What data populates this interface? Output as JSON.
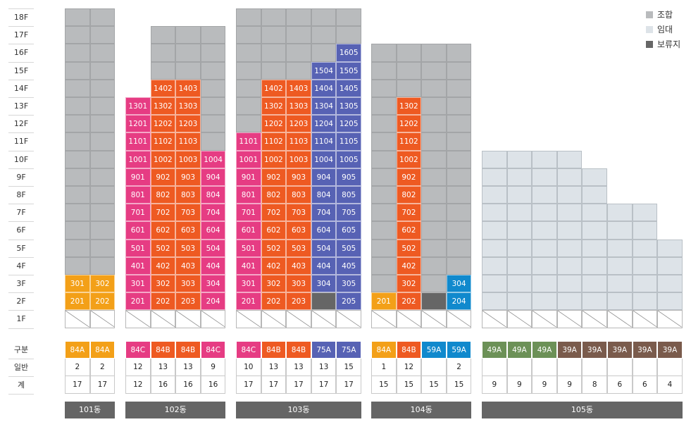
{
  "floors": [
    "18F",
    "17F",
    "16F",
    "15F",
    "14F",
    "13F",
    "12F",
    "11F",
    "10F",
    "9F",
    "8F",
    "7F",
    "6F",
    "5F",
    "4F",
    "3F",
    "2F",
    "1F"
  ],
  "row_labels": {
    "type": "구분",
    "general": "일반",
    "total": "계"
  },
  "legend": [
    {
      "label": "조합",
      "color": "#b9bbbd"
    },
    {
      "label": "임대",
      "color": "#dde3e8"
    },
    {
      "label": "보류지",
      "color": "#666666"
    }
  ],
  "type_colors": {
    "84A": "#f3a018",
    "84B": "#ee5a22",
    "84C": "#e63c83",
    "75A": "#5762b4",
    "59A": "#1089cd",
    "49A": "#6c9157",
    "39A": "#7a5b4c"
  },
  "buildings": [
    {
      "name": "101동",
      "columns": [
        {
          "type": "84A",
          "general": "2",
          "total": "17",
          "top": 18,
          "units": [
            {
              "floor": 3,
              "label": "301"
            },
            {
              "floor": 2,
              "label": "201"
            }
          ]
        },
        {
          "type": "84A",
          "general": "2",
          "total": "17",
          "top": 18,
          "units": [
            {
              "floor": 3,
              "label": "302"
            },
            {
              "floor": 2,
              "label": "202"
            }
          ]
        }
      ]
    },
    {
      "name": "102동",
      "columns": [
        {
          "type": "84C",
          "general": "12",
          "total": "12",
          "top": 13,
          "units": [
            {
              "floor": 13,
              "label": "1301"
            },
            {
              "floor": 12,
              "label": "1201"
            },
            {
              "floor": 11,
              "label": "1101"
            },
            {
              "floor": 10,
              "label": "1001"
            },
            {
              "floor": 9,
              "label": "901"
            },
            {
              "floor": 8,
              "label": "801"
            },
            {
              "floor": 7,
              "label": "701"
            },
            {
              "floor": 6,
              "label": "601"
            },
            {
              "floor": 5,
              "label": "501"
            },
            {
              "floor": 4,
              "label": "401"
            },
            {
              "floor": 3,
              "label": "301"
            },
            {
              "floor": 2,
              "label": "201"
            }
          ]
        },
        {
          "type": "84B",
          "general": "13",
          "total": "16",
          "top": 17,
          "units": [
            {
              "floor": 14,
              "label": "1402"
            },
            {
              "floor": 13,
              "label": "1302"
            },
            {
              "floor": 12,
              "label": "1202"
            },
            {
              "floor": 11,
              "label": "1102"
            },
            {
              "floor": 10,
              "label": "1002"
            },
            {
              "floor": 9,
              "label": "902"
            },
            {
              "floor": 8,
              "label": "802"
            },
            {
              "floor": 7,
              "label": "702"
            },
            {
              "floor": 6,
              "label": "602"
            },
            {
              "floor": 5,
              "label": "502"
            },
            {
              "floor": 4,
              "label": "402"
            },
            {
              "floor": 3,
              "label": "302"
            },
            {
              "floor": 2,
              "label": "202"
            }
          ]
        },
        {
          "type": "84B",
          "general": "13",
          "total": "16",
          "top": 17,
          "units": [
            {
              "floor": 14,
              "label": "1403"
            },
            {
              "floor": 13,
              "label": "1303"
            },
            {
              "floor": 12,
              "label": "1203"
            },
            {
              "floor": 11,
              "label": "1103"
            },
            {
              "floor": 10,
              "label": "1003"
            },
            {
              "floor": 9,
              "label": "903"
            },
            {
              "floor": 8,
              "label": "803"
            },
            {
              "floor": 7,
              "label": "703"
            },
            {
              "floor": 6,
              "label": "603"
            },
            {
              "floor": 5,
              "label": "503"
            },
            {
              "floor": 4,
              "label": "403"
            },
            {
              "floor": 3,
              "label": "303"
            },
            {
              "floor": 2,
              "label": "203"
            }
          ]
        },
        {
          "type": "84C",
          "general": "9",
          "total": "16",
          "top": 17,
          "units": [
            {
              "floor": 10,
              "label": "1004"
            },
            {
              "floor": 9,
              "label": "904"
            },
            {
              "floor": 8,
              "label": "804"
            },
            {
              "floor": 7,
              "label": "704"
            },
            {
              "floor": 6,
              "label": "604"
            },
            {
              "floor": 5,
              "label": "504"
            },
            {
              "floor": 4,
              "label": "404"
            },
            {
              "floor": 3,
              "label": "304"
            },
            {
              "floor": 2,
              "label": "204"
            }
          ]
        }
      ]
    },
    {
      "name": "103동",
      "columns": [
        {
          "type": "84C",
          "general": "10",
          "total": "17",
          "top": 18,
          "units": [
            {
              "floor": 11,
              "label": "1101"
            },
            {
              "floor": 10,
              "label": "1001"
            },
            {
              "floor": 9,
              "label": "901"
            },
            {
              "floor": 8,
              "label": "801"
            },
            {
              "floor": 7,
              "label": "701"
            },
            {
              "floor": 6,
              "label": "601"
            },
            {
              "floor": 5,
              "label": "501"
            },
            {
              "floor": 4,
              "label": "401"
            },
            {
              "floor": 3,
              "label": "301"
            },
            {
              "floor": 2,
              "label": "201"
            }
          ]
        },
        {
          "type": "84B",
          "general": "13",
          "total": "17",
          "top": 18,
          "units": [
            {
              "floor": 14,
              "label": "1402"
            },
            {
              "floor": 13,
              "label": "1302"
            },
            {
              "floor": 12,
              "label": "1202"
            },
            {
              "floor": 11,
              "label": "1102"
            },
            {
              "floor": 10,
              "label": "1002"
            },
            {
              "floor": 9,
              "label": "902"
            },
            {
              "floor": 8,
              "label": "802"
            },
            {
              "floor": 7,
              "label": "702"
            },
            {
              "floor": 6,
              "label": "602"
            },
            {
              "floor": 5,
              "label": "502"
            },
            {
              "floor": 4,
              "label": "402"
            },
            {
              "floor": 3,
              "label": "302"
            },
            {
              "floor": 2,
              "label": "202"
            }
          ]
        },
        {
          "type": "84B",
          "general": "13",
          "total": "17",
          "top": 18,
          "units": [
            {
              "floor": 14,
              "label": "1403"
            },
            {
              "floor": 13,
              "label": "1303"
            },
            {
              "floor": 12,
              "label": "1203"
            },
            {
              "floor": 11,
              "label": "1103"
            },
            {
              "floor": 10,
              "label": "1003"
            },
            {
              "floor": 9,
              "label": "903"
            },
            {
              "floor": 8,
              "label": "803"
            },
            {
              "floor": 7,
              "label": "703"
            },
            {
              "floor": 6,
              "label": "603"
            },
            {
              "floor": 5,
              "label": "503"
            },
            {
              "floor": 4,
              "label": "403"
            },
            {
              "floor": 3,
              "label": "303"
            },
            {
              "floor": 2,
              "label": "203"
            }
          ]
        },
        {
          "type": "75A",
          "general": "13",
          "total": "17",
          "top": 18,
          "reserved": [
            2
          ],
          "units": [
            {
              "floor": 15,
              "label": "1504"
            },
            {
              "floor": 14,
              "label": "1404"
            },
            {
              "floor": 13,
              "label": "1304"
            },
            {
              "floor": 12,
              "label": "1204"
            },
            {
              "floor": 11,
              "label": "1104"
            },
            {
              "floor": 10,
              "label": "1004"
            },
            {
              "floor": 9,
              "label": "904"
            },
            {
              "floor": 8,
              "label": "804"
            },
            {
              "floor": 7,
              "label": "704"
            },
            {
              "floor": 6,
              "label": "604"
            },
            {
              "floor": 5,
              "label": "504"
            },
            {
              "floor": 4,
              "label": "404"
            },
            {
              "floor": 3,
              "label": "304"
            }
          ]
        },
        {
          "type": "75A",
          "general": "15",
          "total": "17",
          "top": 18,
          "units": [
            {
              "floor": 16,
              "label": "1605"
            },
            {
              "floor": 15,
              "label": "1505"
            },
            {
              "floor": 14,
              "label": "1405"
            },
            {
              "floor": 13,
              "label": "1305"
            },
            {
              "floor": 12,
              "label": "1205"
            },
            {
              "floor": 11,
              "label": "1105"
            },
            {
              "floor": 10,
              "label": "1005"
            },
            {
              "floor": 9,
              "label": "905"
            },
            {
              "floor": 8,
              "label": "805"
            },
            {
              "floor": 7,
              "label": "705"
            },
            {
              "floor": 6,
              "label": "605"
            },
            {
              "floor": 5,
              "label": "505"
            },
            {
              "floor": 4,
              "label": "405"
            },
            {
              "floor": 3,
              "label": "305"
            },
            {
              "floor": 2,
              "label": "205"
            }
          ]
        }
      ]
    },
    {
      "name": "104동",
      "columns": [
        {
          "type": "84A",
          "general": "1",
          "total": "15",
          "top": 16,
          "units": [
            {
              "floor": 2,
              "label": "201"
            }
          ]
        },
        {
          "type": "84B",
          "general": "12",
          "total": "15",
          "top": 16,
          "units": [
            {
              "floor": 13,
              "label": "1302"
            },
            {
              "floor": 12,
              "label": "1202"
            },
            {
              "floor": 11,
              "label": "1102"
            },
            {
              "floor": 10,
              "label": "1002"
            },
            {
              "floor": 9,
              "label": "902"
            },
            {
              "floor": 8,
              "label": "802"
            },
            {
              "floor": 7,
              "label": "702"
            },
            {
              "floor": 6,
              "label": "602"
            },
            {
              "floor": 5,
              "label": "502"
            },
            {
              "floor": 4,
              "label": "402"
            },
            {
              "floor": 3,
              "label": "302"
            },
            {
              "floor": 2,
              "label": "202"
            }
          ]
        },
        {
          "type": "59A",
          "general": "",
          "total": "15",
          "top": 16,
          "reserved": [
            2
          ],
          "units": []
        },
        {
          "type": "59A",
          "general": "2",
          "total": "15",
          "top": 16,
          "units": [
            {
              "floor": 3,
              "label": "304"
            },
            {
              "floor": 2,
              "label": "204"
            }
          ]
        }
      ]
    },
    {
      "name": "105동",
      "rental": true,
      "columns": [
        {
          "type": "49A",
          "general": "",
          "total": "9",
          "top": 10,
          "units": []
        },
        {
          "type": "49A",
          "general": "",
          "total": "9",
          "top": 10,
          "units": []
        },
        {
          "type": "49A",
          "general": "",
          "total": "9",
          "top": 10,
          "units": []
        },
        {
          "type": "39A",
          "general": "",
          "total": "9",
          "top": 10,
          "units": []
        },
        {
          "type": "39A",
          "general": "",
          "total": "8",
          "top": 9,
          "units": []
        },
        {
          "type": "39A",
          "general": "",
          "total": "6",
          "top": 7,
          "units": []
        },
        {
          "type": "39A",
          "general": "",
          "total": "6",
          "top": 7,
          "units": []
        },
        {
          "type": "39A",
          "general": "",
          "total": "4",
          "top": 5,
          "units": []
        }
      ]
    }
  ]
}
